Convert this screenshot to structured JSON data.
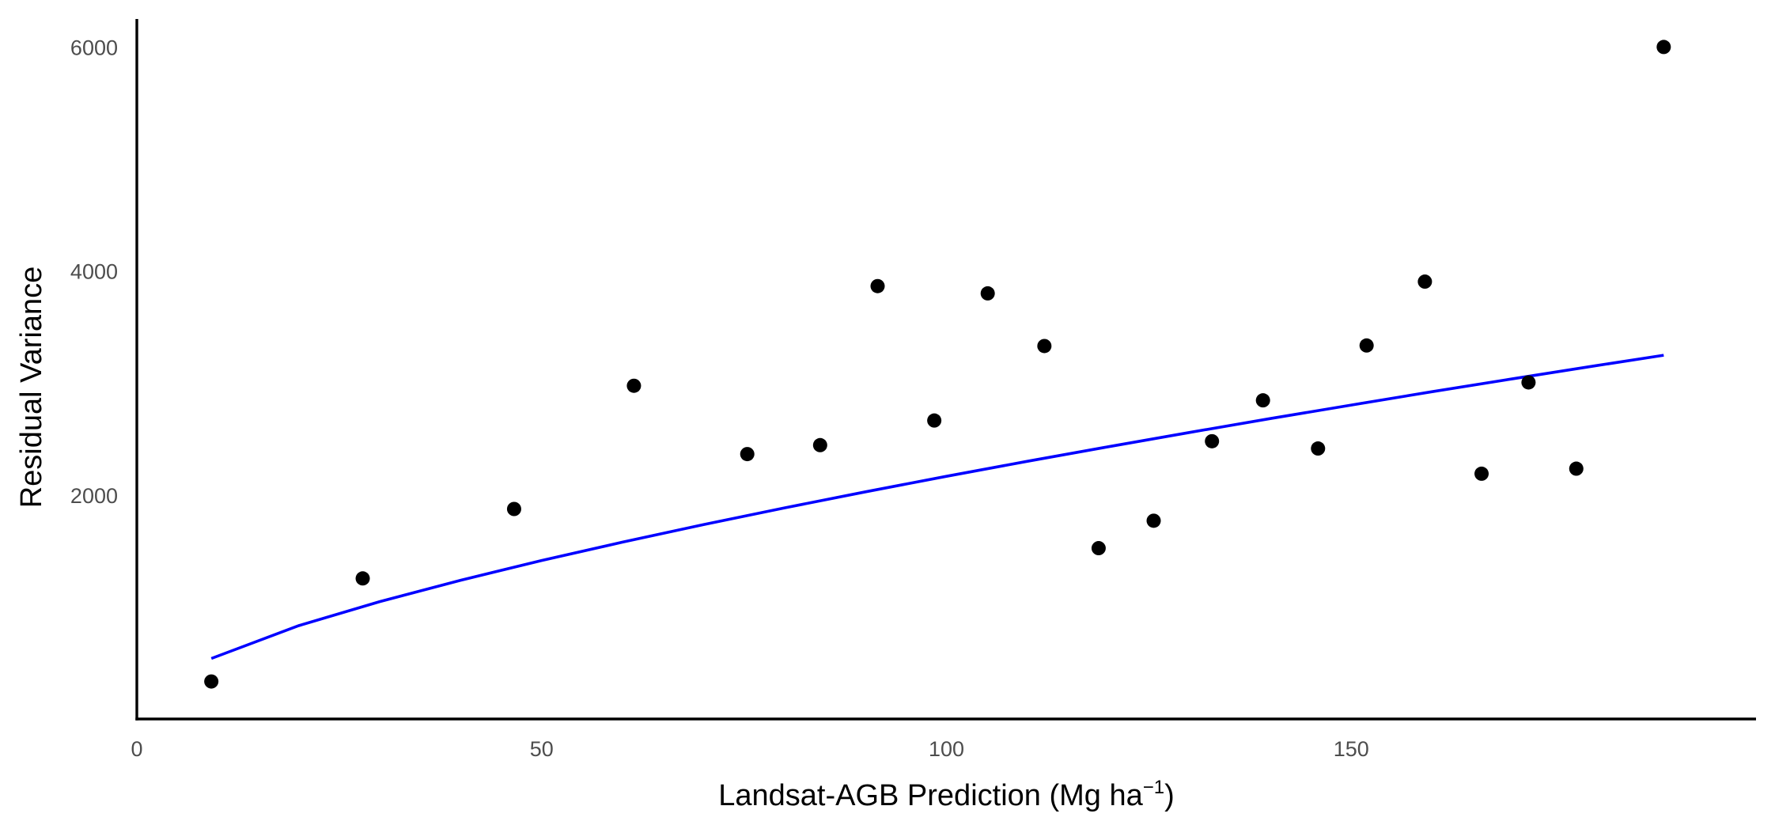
{
  "chart_data": {
    "type": "scatter",
    "title": "",
    "xlabel": {
      "main": "Landsat-AGB Prediction (Mg ha",
      "sup": "−1",
      "close": ")"
    },
    "ylabel": "Residual Variance",
    "xlim": [
      0,
      200
    ],
    "ylim": [
      0,
      6250
    ],
    "x_ticks": [
      0,
      50,
      100,
      150
    ],
    "x_tick_labels": [
      "0",
      "50",
      "100",
      "150"
    ],
    "y_ticks": [
      2000,
      4000,
      6000
    ],
    "y_tick_labels": [
      "2000",
      "4000",
      "6000"
    ],
    "grid": false,
    "legend": "none",
    "colors": {
      "points": "#000000",
      "fit_line": "#0000ff",
      "axis": "#000000",
      "tick_text": "#4d4d4d"
    },
    "series": [
      {
        "type": "scatter",
        "x": [
          9.2,
          27.9,
          46.6,
          61.4,
          75.4,
          84.4,
          91.5,
          98.5,
          105.1,
          112.1,
          118.8,
          125.6,
          132.8,
          139.1,
          145.9,
          151.9,
          159.1,
          166.1,
          171.9,
          177.8,
          188.6
        ],
        "y": [
          335,
          1255,
          1875,
          2975,
          2365,
          2445,
          3865,
          2665,
          3800,
          3330,
          1525,
          1770,
          2480,
          2845,
          2415,
          3335,
          3905,
          2190,
          3005,
          2235,
          6000
        ]
      },
      {
        "type": "line",
        "fit": "power",
        "x": [
          9.2,
          20,
          30,
          40,
          50,
          60,
          70,
          80,
          90,
          100,
          110,
          120,
          130,
          140,
          150,
          160,
          170,
          180,
          188.6
        ],
        "y": [
          540,
          833,
          1048,
          1239,
          1415,
          1579,
          1736,
          1885,
          2028,
          2167,
          2301,
          2431,
          2558,
          2682,
          2803,
          2922,
          3038,
          3152,
          3248
        ]
      }
    ]
  }
}
